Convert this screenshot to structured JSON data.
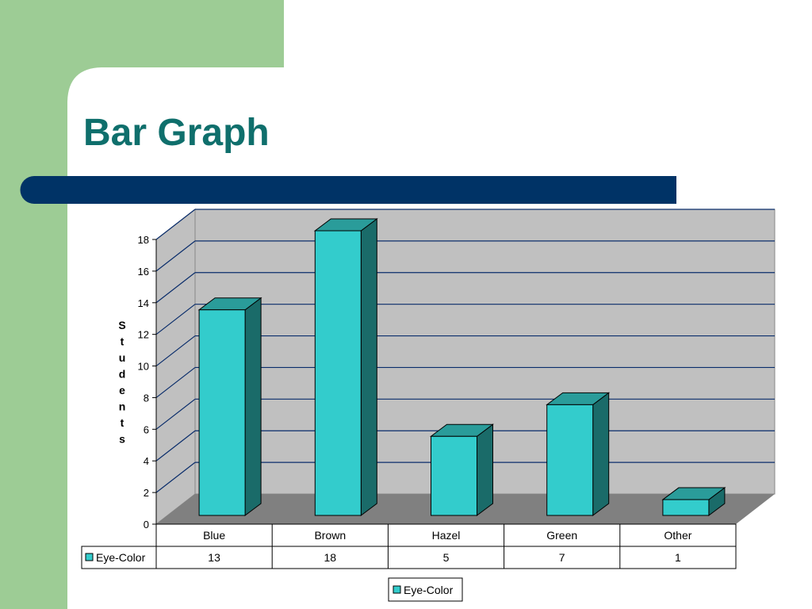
{
  "slide": {
    "title": "Bar Graph",
    "colors": {
      "green_panel": "#9dcc95",
      "navy_bar": "#003366",
      "title": "#0f6f6c",
      "bar_front": "#33cccc",
      "bar_top": "#2a9c9a",
      "bar_side": "#1a6b69",
      "wall": "#c0c0c0",
      "floor": "#808080"
    }
  },
  "chart_data": {
    "type": "bar",
    "ylabel": "Students",
    "ylim": [
      0,
      18
    ],
    "yticks": [
      0,
      2,
      4,
      6,
      8,
      10,
      12,
      14,
      16,
      18
    ],
    "categories": [
      "Blue",
      "Brown",
      "Hazel",
      "Green",
      "Other"
    ],
    "series": [
      {
        "name": "Eye-Color",
        "values": [
          13,
          18,
          5,
          7,
          1
        ]
      }
    ],
    "data_table": true,
    "legend": "bottom-center",
    "grid": true
  }
}
